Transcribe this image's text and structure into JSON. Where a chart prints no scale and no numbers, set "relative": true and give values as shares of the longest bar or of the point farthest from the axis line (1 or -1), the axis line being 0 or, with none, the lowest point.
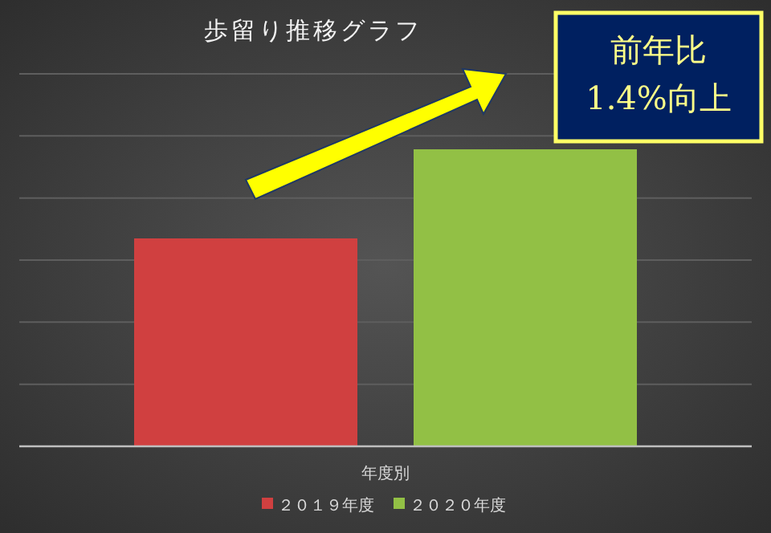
{
  "chart_data": {
    "type": "bar",
    "title": "歩留り推移グラフ",
    "xlabel": "年度別",
    "categories": [
      null
    ],
    "relative": true,
    "grid": "y",
    "legend": "bottom",
    "series": [
      {
        "name": "２０１９年度",
        "color": "#d04040",
        "values": [
          0.7
        ]
      },
      {
        "name": "２０２０年度",
        "color": "#92c045",
        "values": [
          1
        ]
      }
    ],
    "annotations": [
      "前年比\n1.4%向上"
    ]
  }
}
